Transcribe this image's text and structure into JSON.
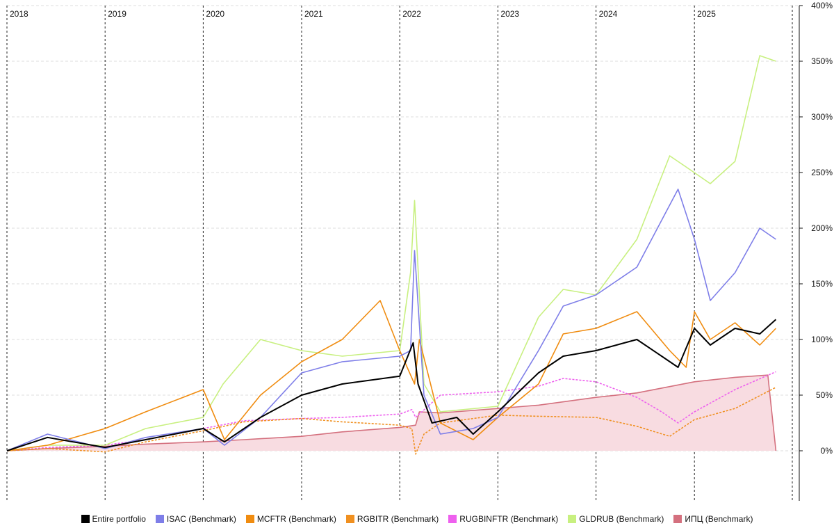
{
  "chart_data": {
    "type": "line",
    "x_type": "date",
    "xlim": [
      "2018-01-01",
      "2025-12-31"
    ],
    "year_labels": [
      "2018",
      "2019",
      "2020",
      "2021",
      "2022",
      "2023",
      "2024",
      "2025"
    ],
    "ylim": [
      -50,
      400
    ],
    "y_axis_position": "right",
    "y_ticks": [
      {
        "value": 400,
        "label": "400%"
      },
      {
        "value": 350,
        "label": "350%"
      },
      {
        "value": 300,
        "label": "300%"
      },
      {
        "value": 250,
        "label": "250%"
      },
      {
        "value": 200,
        "label": "200%"
      },
      {
        "value": 150,
        "label": "150%"
      },
      {
        "value": 100,
        "label": "100%"
      },
      {
        "value": 50,
        "label": "50%"
      },
      {
        "value": 0,
        "label": "0%"
      }
    ],
    "grid": true,
    "legend_position": "bottom",
    "series": [
      {
        "name": "ИПЦ (Benchmark)",
        "color": "#d4707e",
        "fill": "#f8dce1",
        "area": true,
        "dash": false,
        "points": [
          [
            "2018-01-01",
            0
          ],
          [
            "2018-06-01",
            2
          ],
          [
            "2019-01-01",
            4
          ],
          [
            "2019-06-01",
            6
          ],
          [
            "2020-01-01",
            8
          ],
          [
            "2020-06-01",
            10
          ],
          [
            "2021-01-01",
            13
          ],
          [
            "2021-06-01",
            17
          ],
          [
            "2022-01-01",
            21
          ],
          [
            "2022-03-01",
            23
          ],
          [
            "2022-03-15",
            35
          ],
          [
            "2022-06-01",
            34
          ],
          [
            "2023-01-01",
            38
          ],
          [
            "2023-06-01",
            41
          ],
          [
            "2024-01-01",
            48
          ],
          [
            "2024-06-01",
            52
          ],
          [
            "2025-01-01",
            62
          ],
          [
            "2025-06-01",
            66
          ],
          [
            "2025-10-01",
            68
          ],
          [
            "2025-10-31",
            0
          ]
        ]
      },
      {
        "name": "RUGBINFTR (Benchmark)",
        "color": "#ee60ee",
        "dash": true,
        "points": [
          [
            "2018-01-01",
            0
          ],
          [
            "2018-06-01",
            3
          ],
          [
            "2019-01-01",
            5
          ],
          [
            "2019-06-01",
            10
          ],
          [
            "2020-01-01",
            20
          ],
          [
            "2020-06-01",
            27
          ],
          [
            "2021-01-01",
            29
          ],
          [
            "2021-06-01",
            30
          ],
          [
            "2022-01-01",
            33
          ],
          [
            "2022-02-15",
            37
          ],
          [
            "2022-03-01",
            30
          ],
          [
            "2022-06-01",
            50
          ],
          [
            "2023-01-01",
            53
          ],
          [
            "2023-06-01",
            58
          ],
          [
            "2023-09-01",
            65
          ],
          [
            "2024-01-01",
            62
          ],
          [
            "2024-06-01",
            48
          ],
          [
            "2024-09-01",
            35
          ],
          [
            "2024-11-01",
            25
          ],
          [
            "2025-01-01",
            35
          ],
          [
            "2025-06-01",
            55
          ],
          [
            "2025-10-31",
            71
          ]
        ]
      },
      {
        "name": "RGBITR (Benchmark)",
        "color": "#f09020",
        "dash": true,
        "points": [
          [
            "2018-01-01",
            0
          ],
          [
            "2018-06-01",
            2
          ],
          [
            "2019-01-01",
            -1
          ],
          [
            "2019-06-01",
            8
          ],
          [
            "2020-01-01",
            18
          ],
          [
            "2020-06-01",
            26
          ],
          [
            "2021-01-01",
            29
          ],
          [
            "2021-06-01",
            26
          ],
          [
            "2022-01-01",
            23
          ],
          [
            "2022-02-15",
            20
          ],
          [
            "2022-03-01",
            -3
          ],
          [
            "2022-04-01",
            15
          ],
          [
            "2022-06-01",
            25
          ],
          [
            "2023-01-01",
            32
          ],
          [
            "2023-06-01",
            31
          ],
          [
            "2024-01-01",
            30
          ],
          [
            "2024-06-01",
            22
          ],
          [
            "2024-10-01",
            13
          ],
          [
            "2025-01-01",
            28
          ],
          [
            "2025-06-01",
            38
          ],
          [
            "2025-10-31",
            57
          ]
        ]
      },
      {
        "name": "GLDRUB (Benchmark)",
        "color": "#c8f080",
        "dash": false,
        "points": [
          [
            "2018-01-01",
            0
          ],
          [
            "2018-06-01",
            5
          ],
          [
            "2019-01-01",
            5
          ],
          [
            "2019-06-01",
            20
          ],
          [
            "2020-01-01",
            30
          ],
          [
            "2020-03-15",
            60
          ],
          [
            "2020-08-01",
            100
          ],
          [
            "2021-01-01",
            90
          ],
          [
            "2021-06-01",
            85
          ],
          [
            "2022-01-01",
            90
          ],
          [
            "2022-02-10",
            160
          ],
          [
            "2022-02-25",
            225
          ],
          [
            "2022-04-01",
            60
          ],
          [
            "2022-06-01",
            35
          ],
          [
            "2023-01-01",
            40
          ],
          [
            "2023-06-01",
            120
          ],
          [
            "2023-09-01",
            145
          ],
          [
            "2024-01-01",
            140
          ],
          [
            "2024-06-01",
            190
          ],
          [
            "2024-10-01",
            265
          ],
          [
            "2024-12-01",
            255
          ],
          [
            "2025-03-01",
            240
          ],
          [
            "2025-06-01",
            260
          ],
          [
            "2025-09-01",
            355
          ],
          [
            "2025-10-31",
            350
          ]
        ]
      },
      {
        "name": "MCFTR (Benchmark)",
        "color": "#f08c10",
        "dash": false,
        "points": [
          [
            "2018-01-01",
            0
          ],
          [
            "2018-06-01",
            5
          ],
          [
            "2019-01-01",
            20
          ],
          [
            "2019-06-01",
            35
          ],
          [
            "2020-01-01",
            55
          ],
          [
            "2020-03-20",
            10
          ],
          [
            "2020-08-01",
            50
          ],
          [
            "2021-01-01",
            80
          ],
          [
            "2021-06-01",
            100
          ],
          [
            "2021-10-20",
            135
          ],
          [
            "2022-01-01",
            90
          ],
          [
            "2022-02-25",
            60
          ],
          [
            "2022-03-15",
            100
          ],
          [
            "2022-06-01",
            25
          ],
          [
            "2022-10-01",
            10
          ],
          [
            "2023-01-01",
            30
          ],
          [
            "2023-06-01",
            60
          ],
          [
            "2023-09-01",
            105
          ],
          [
            "2024-01-01",
            110
          ],
          [
            "2024-06-01",
            125
          ],
          [
            "2024-10-01",
            90
          ],
          [
            "2024-12-01",
            75
          ],
          [
            "2025-01-01",
            125
          ],
          [
            "2025-03-01",
            100
          ],
          [
            "2025-06-01",
            115
          ],
          [
            "2025-09-01",
            95
          ],
          [
            "2025-10-31",
            110
          ]
        ]
      },
      {
        "name": "ISAC (Benchmark)",
        "color": "#7e7ee8",
        "dash": false,
        "points": [
          [
            "2018-01-01",
            0
          ],
          [
            "2018-06-01",
            15
          ],
          [
            "2019-01-01",
            2
          ],
          [
            "2019-06-01",
            12
          ],
          [
            "2020-01-01",
            20
          ],
          [
            "2020-03-20",
            5
          ],
          [
            "2020-08-01",
            30
          ],
          [
            "2021-01-01",
            70
          ],
          [
            "2021-06-01",
            80
          ],
          [
            "2022-01-01",
            85
          ],
          [
            "2022-02-10",
            90
          ],
          [
            "2022-02-25",
            180
          ],
          [
            "2022-04-01",
            50
          ],
          [
            "2022-06-01",
            15
          ],
          [
            "2022-10-01",
            20
          ],
          [
            "2023-01-01",
            30
          ],
          [
            "2023-06-01",
            90
          ],
          [
            "2023-09-01",
            130
          ],
          [
            "2024-01-01",
            140
          ],
          [
            "2024-06-01",
            165
          ],
          [
            "2024-11-01",
            235
          ],
          [
            "2025-01-01",
            190
          ],
          [
            "2025-03-01",
            135
          ],
          [
            "2025-06-01",
            160
          ],
          [
            "2025-09-01",
            200
          ],
          [
            "2025-10-31",
            190
          ]
        ]
      },
      {
        "name": "Entire portfolio",
        "color": "#000000",
        "dash": false,
        "width": 2,
        "points": [
          [
            "2018-01-01",
            0
          ],
          [
            "2018-06-01",
            12
          ],
          [
            "2019-01-01",
            3
          ],
          [
            "2019-06-01",
            10
          ],
          [
            "2020-01-01",
            20
          ],
          [
            "2020-03-20",
            8
          ],
          [
            "2020-08-01",
            30
          ],
          [
            "2021-01-01",
            50
          ],
          [
            "2021-06-01",
            60
          ],
          [
            "2022-01-01",
            67
          ],
          [
            "2022-02-20",
            97
          ],
          [
            "2022-03-10",
            60
          ],
          [
            "2022-05-01",
            25
          ],
          [
            "2022-08-01",
            30
          ],
          [
            "2022-10-01",
            15
          ],
          [
            "2023-01-01",
            35
          ],
          [
            "2023-06-01",
            70
          ],
          [
            "2023-09-01",
            85
          ],
          [
            "2024-01-01",
            90
          ],
          [
            "2024-06-01",
            100
          ],
          [
            "2024-09-01",
            85
          ],
          [
            "2024-11-01",
            75
          ],
          [
            "2025-01-01",
            110
          ],
          [
            "2025-03-01",
            95
          ],
          [
            "2025-06-01",
            110
          ],
          [
            "2025-09-01",
            105
          ],
          [
            "2025-10-31",
            118
          ]
        ]
      }
    ]
  },
  "legend": [
    {
      "label": "Entire portfolio",
      "color": "#000000"
    },
    {
      "label": "ISAC (Benchmark)",
      "color": "#7e7ee8"
    },
    {
      "label": "MCFTR (Benchmark)",
      "color": "#f08c10"
    },
    {
      "label": "RGBITR (Benchmark)",
      "color": "#f09020"
    },
    {
      "label": "RUGBINFTR (Benchmark)",
      "color": "#ee60ee"
    },
    {
      "label": "GLDRUB (Benchmark)",
      "color": "#c8f080"
    },
    {
      "label": "ИПЦ (Benchmark)",
      "color": "#d4707e"
    }
  ]
}
